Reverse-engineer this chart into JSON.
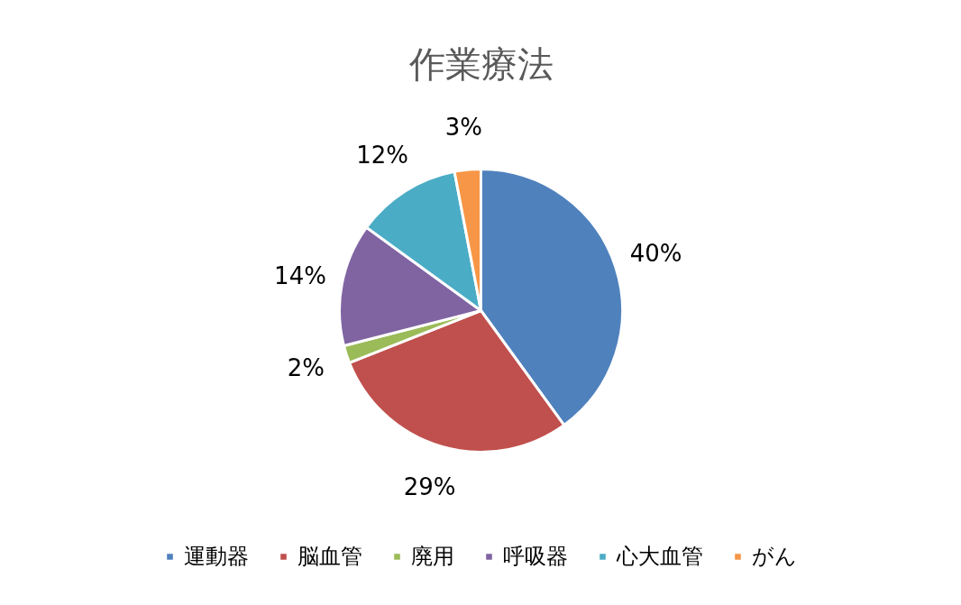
{
  "chart_data": {
    "type": "pie",
    "title": "作業療法",
    "categories": [
      "運動器",
      "脳血管",
      "廃用",
      "呼吸器",
      "心大血管",
      "がん"
    ],
    "values": [
      40,
      29,
      2,
      14,
      12,
      3
    ],
    "colors": [
      "#4f81bd",
      "#c0504d",
      "#9bbb59",
      "#8064a2",
      "#4bacc6",
      "#f79646"
    ],
    "value_labels": [
      "40%",
      "29%",
      "2%",
      "14%",
      "12%",
      "3%"
    ],
    "legend": "bottom"
  }
}
